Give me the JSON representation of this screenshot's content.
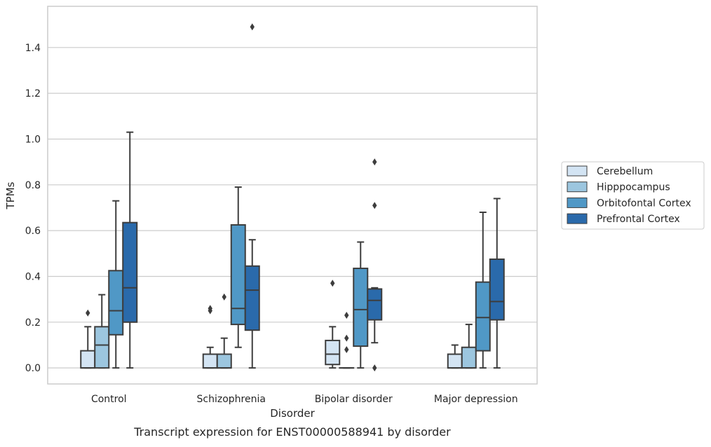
{
  "chart_data": {
    "type": "box",
    "xlabel": "Disorder",
    "ylabel": "TPMs",
    "caption": "Transcript expression for ENST00000588941 by disorder",
    "ylim": [
      -0.07,
      1.58
    ],
    "yticks": [
      0.0,
      0.2,
      0.4,
      0.6,
      0.8,
      1.0,
      1.2,
      1.4
    ],
    "ytick_labels": [
      "0.0",
      "0.2",
      "0.4",
      "0.6",
      "0.8",
      "1.0",
      "1.2",
      "1.4"
    ],
    "grid": "horizontal",
    "legend_position": "right",
    "categories": [
      "Control",
      "Schizophrenia",
      "Bipolar disorder",
      "Major depression"
    ],
    "series": [
      {
        "name": "Cerebellum",
        "color": "#d3e4f3",
        "boxes": [
          {
            "q1": 0.0,
            "median": 0.0,
            "q3": 0.075,
            "whisker_low": 0.0,
            "whisker_high": 0.18,
            "outliers": [
              0.24
            ]
          },
          {
            "q1": 0.0,
            "median": 0.0,
            "q3": 0.06,
            "whisker_low": 0.0,
            "whisker_high": 0.09,
            "outliers": [
              0.25,
              0.26
            ]
          },
          {
            "q1": 0.015,
            "median": 0.06,
            "q3": 0.12,
            "whisker_low": 0.0,
            "whisker_high": 0.18,
            "outliers": [
              0.37
            ]
          },
          {
            "q1": 0.0,
            "median": 0.0,
            "q3": 0.06,
            "whisker_low": 0.0,
            "whisker_high": 0.1,
            "outliers": []
          }
        ]
      },
      {
        "name": "Hipppocampus",
        "color": "#9cc6df",
        "boxes": [
          {
            "q1": 0.0,
            "median": 0.1,
            "q3": 0.18,
            "whisker_low": 0.0,
            "whisker_high": 0.32,
            "outliers": []
          },
          {
            "q1": 0.0,
            "median": 0.0,
            "q3": 0.06,
            "whisker_low": 0.0,
            "whisker_high": 0.13,
            "outliers": [
              0.31
            ]
          },
          {
            "q1": 0.0,
            "median": 0.0,
            "q3": 0.0,
            "whisker_low": 0.0,
            "whisker_high": 0.0,
            "outliers": [
              0.08,
              0.13,
              0.23
            ]
          },
          {
            "q1": 0.0,
            "median": 0.0,
            "q3": 0.09,
            "whisker_low": 0.0,
            "whisker_high": 0.19,
            "outliers": []
          }
        ]
      },
      {
        "name": "Orbitofontal Cortex",
        "color": "#5098c6",
        "boxes": [
          {
            "q1": 0.145,
            "median": 0.25,
            "q3": 0.425,
            "whisker_low": 0.0,
            "whisker_high": 0.73,
            "outliers": []
          },
          {
            "q1": 0.19,
            "median": 0.26,
            "q3": 0.625,
            "whisker_low": 0.09,
            "whisker_high": 0.79,
            "outliers": []
          },
          {
            "q1": 0.095,
            "median": 0.255,
            "q3": 0.435,
            "whisker_low": 0.0,
            "whisker_high": 0.55,
            "outliers": []
          },
          {
            "q1": 0.075,
            "median": 0.22,
            "q3": 0.375,
            "whisker_low": 0.0,
            "whisker_high": 0.68,
            "outliers": []
          }
        ]
      },
      {
        "name": "Prefrontal Cortex",
        "color": "#2a6aab",
        "boxes": [
          {
            "q1": 0.2,
            "median": 0.35,
            "q3": 0.635,
            "whisker_low": 0.0,
            "whisker_high": 1.03,
            "outliers": []
          },
          {
            "q1": 0.165,
            "median": 0.34,
            "q3": 0.445,
            "whisker_low": 0.0,
            "whisker_high": 0.56,
            "outliers": [
              1.49
            ]
          },
          {
            "q1": 0.21,
            "median": 0.295,
            "q3": 0.345,
            "whisker_low": 0.11,
            "whisker_high": 0.35,
            "outliers": [
              0.0,
              0.71,
              0.9
            ]
          },
          {
            "q1": 0.21,
            "median": 0.29,
            "q3": 0.475,
            "whisker_low": 0.0,
            "whisker_high": 0.74,
            "outliers": []
          }
        ]
      }
    ]
  }
}
